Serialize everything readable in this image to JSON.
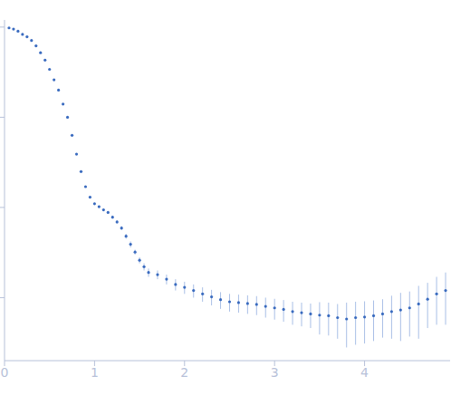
{
  "chart_data": {
    "type": "scatter",
    "log": "y",
    "tick_labels": "x",
    "marker": "circle",
    "color": "#3a6bbf",
    "xlim": [
      0,
      4.95
    ],
    "xticks": [
      0,
      1,
      2,
      3,
      4
    ],
    "ylim": [
      0.0002,
      1.2
    ],
    "yticks": [
      0.001,
      0.01,
      0.1,
      1
    ],
    "x": [
      0.05,
      0.1,
      0.15,
      0.2,
      0.25,
      0.3,
      0.35,
      0.4,
      0.45,
      0.5,
      0.55,
      0.6,
      0.65,
      0.7,
      0.75,
      0.8,
      0.85,
      0.9,
      0.95,
      1.0,
      1.05,
      1.1,
      1.15,
      1.2,
      1.25,
      1.3,
      1.35,
      1.4,
      1.45,
      1.5,
      1.55,
      1.6,
      1.7,
      1.8,
      1.9,
      2.0,
      2.1,
      2.2,
      2.3,
      2.4,
      2.5,
      2.6,
      2.7,
      2.8,
      2.9,
      3.0,
      3.1,
      3.2,
      3.3,
      3.4,
      3.5,
      3.6,
      3.7,
      3.8,
      3.9,
      4.0,
      4.1,
      4.2,
      4.3,
      4.4,
      4.5,
      4.6,
      4.7,
      4.8,
      4.9
    ],
    "values": [
      0.98,
      0.95,
      0.9,
      0.83,
      0.78,
      0.71,
      0.62,
      0.52,
      0.43,
      0.34,
      0.26,
      0.2,
      0.14,
      0.1,
      0.063,
      0.039,
      0.025,
      0.017,
      0.013,
      0.011,
      0.0102,
      0.0094,
      0.0088,
      0.0078,
      0.0069,
      0.0059,
      0.0048,
      0.0039,
      0.0032,
      0.0026,
      0.0022,
      0.0019,
      0.0018,
      0.0016,
      0.0014,
      0.0013,
      0.0012,
      0.0011,
      0.00102,
      0.00095,
      0.0009,
      0.00088,
      0.00086,
      0.00084,
      0.0008,
      0.00077,
      0.00074,
      0.0007,
      0.00068,
      0.00066,
      0.00064,
      0.00063,
      0.0006,
      0.00058,
      0.0006,
      0.00061,
      0.00063,
      0.00066,
      0.0007,
      0.00073,
      0.00077,
      0.00085,
      0.00096,
      0.0011,
      0.0012
    ],
    "errors": [
      0.002,
      0.002,
      0.002,
      0.002,
      0.002,
      0.002,
      0.002,
      0.002,
      0.002,
      0.002,
      0.002,
      0.001,
      0.001,
      0.001,
      0.0008,
      0.0005,
      0.0004,
      0.0003,
      0.0003,
      0.0003,
      0.0003,
      0.0003,
      0.0003,
      0.0003,
      0.0003,
      0.0003,
      0.0003,
      0.0003,
      0.0002,
      0.0002,
      0.0002,
      0.0002,
      0.0002,
      0.0002,
      0.0002,
      0.0002,
      0.0002,
      0.0002,
      0.0002,
      0.0002,
      0.0002,
      0.0002,
      0.0002,
      0.0002,
      0.0002,
      0.0002,
      0.0002,
      0.0002,
      0.0002,
      0.0002,
      0.00025,
      0.00025,
      0.00025,
      0.0003,
      0.0003,
      0.0003,
      0.0003,
      0.0003,
      0.00035,
      0.0004,
      0.0004,
      0.0005,
      0.0005,
      0.0006,
      0.0007
    ]
  }
}
